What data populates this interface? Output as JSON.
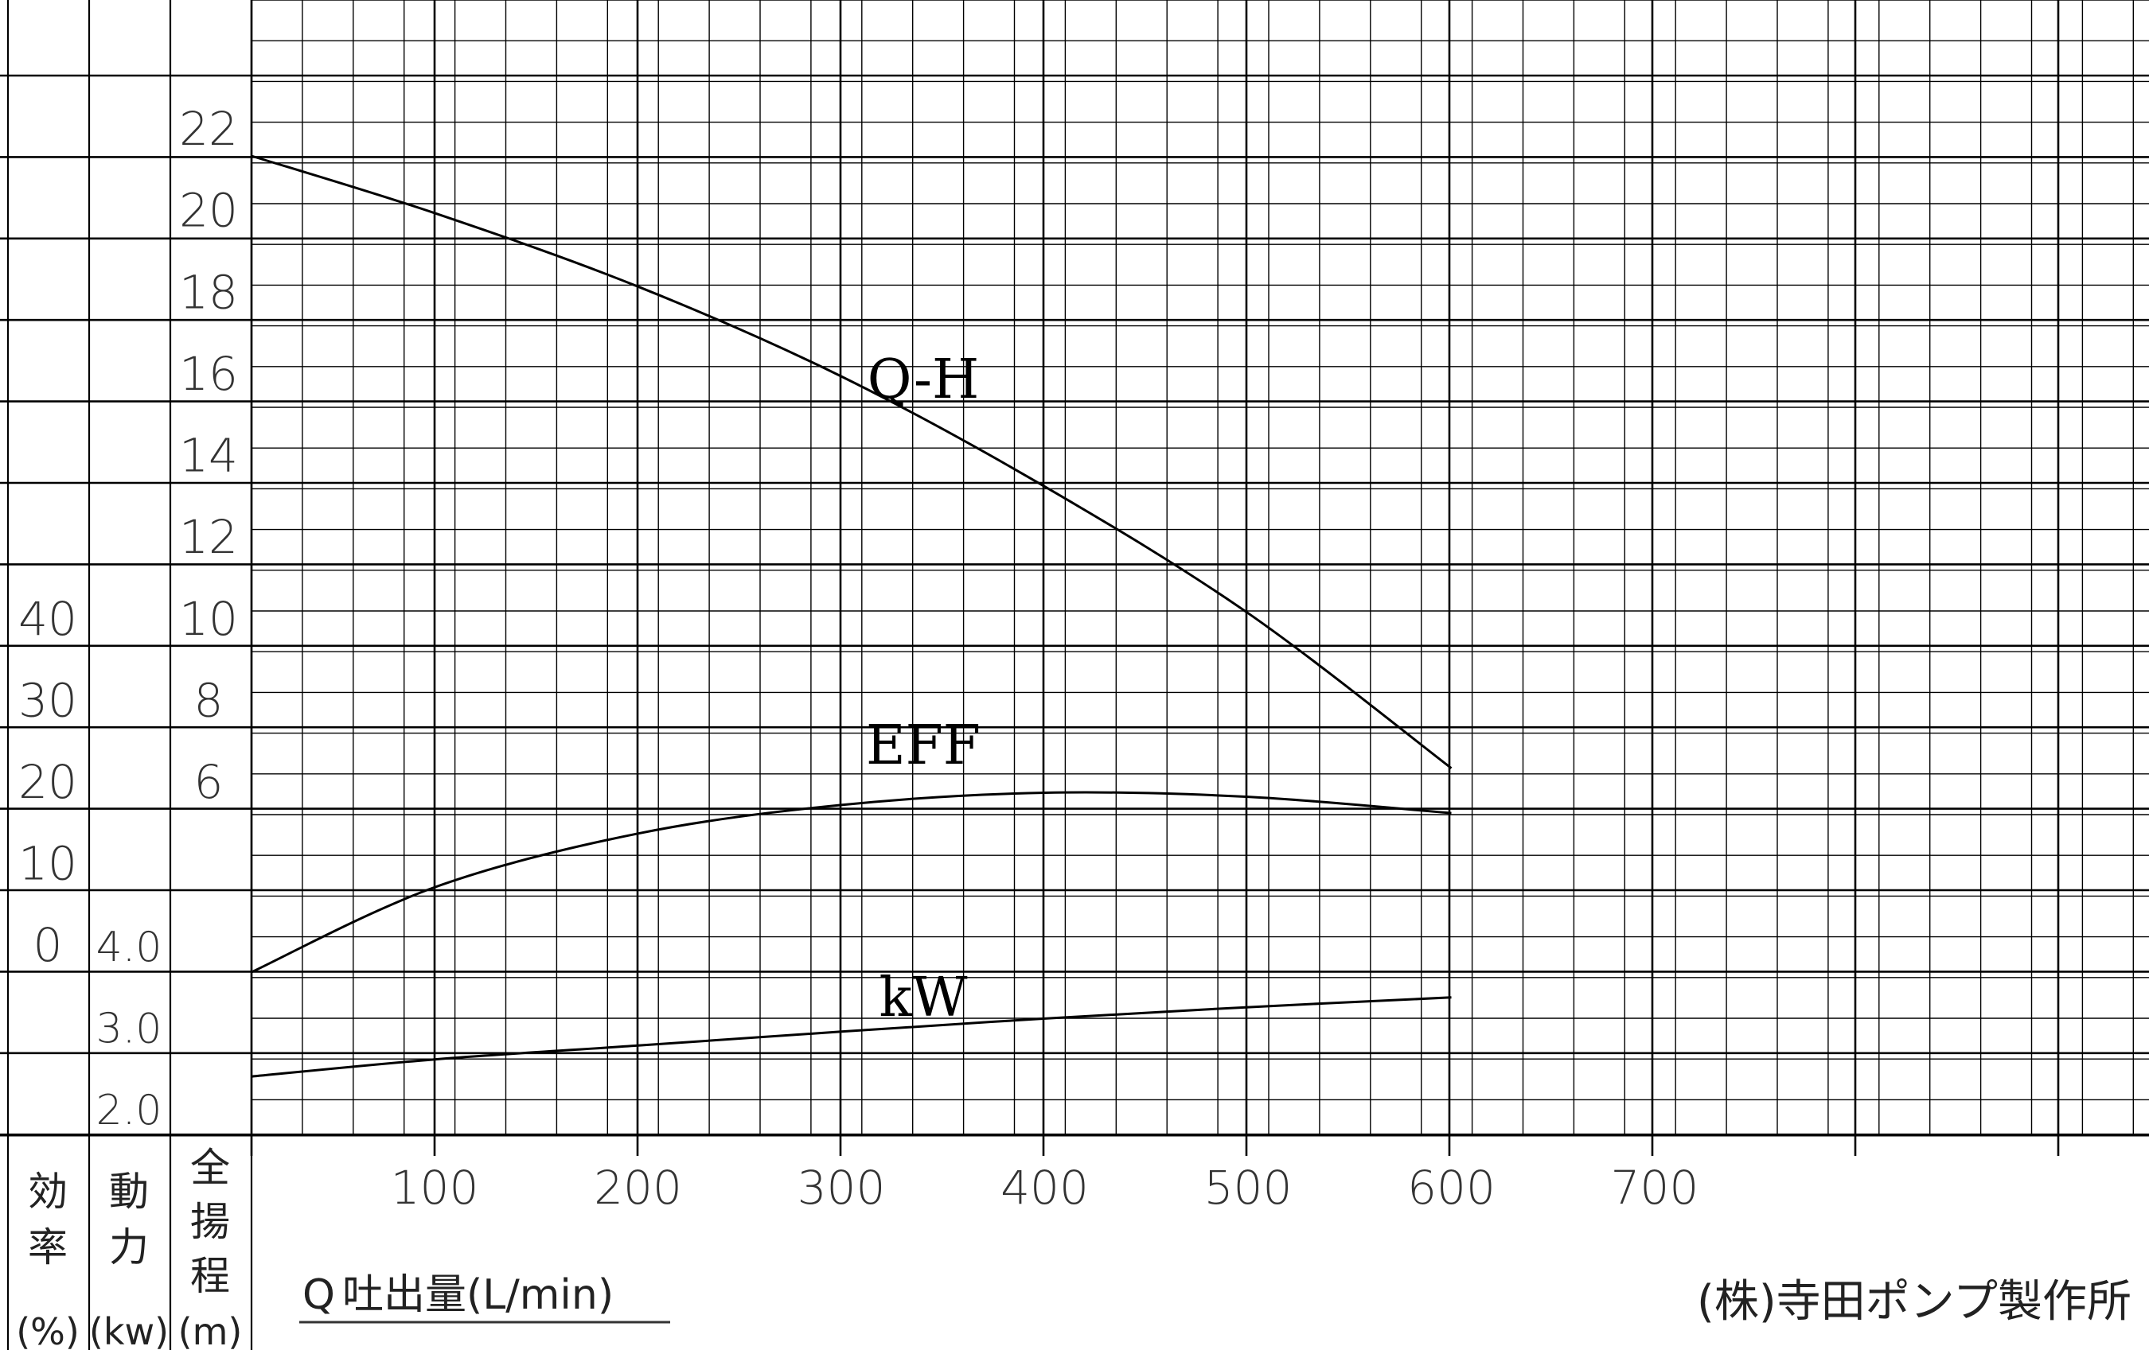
{
  "chart_data": {
    "type": "line",
    "x": {
      "ticks": [
        100,
        200,
        300,
        400,
        500,
        600,
        700
      ],
      "range": [
        10,
        920
      ],
      "label_prefix": "Q",
      "label": "吐出量(L/min)"
    },
    "axes": {
      "efficiency": {
        "header": [
          "効",
          "率"
        ],
        "unit": "(%)",
        "ticks": [
          0,
          10,
          20,
          30,
          40
        ],
        "labels": [
          "0",
          "10",
          "20",
          "30",
          "40"
        ]
      },
      "power": {
        "header": [
          "動",
          "力"
        ],
        "unit": "(kw)",
        "ticks": [
          2.0,
          3.0,
          4.0
        ],
        "labels": [
          "2.0",
          "3.0",
          "4.0"
        ]
      },
      "head": {
        "header": [
          "全",
          "揚",
          "程"
        ],
        "unit": "(m)",
        "ticks": [
          6,
          8,
          10,
          12,
          14,
          16,
          18,
          20,
          22
        ],
        "labels": [
          "6",
          "8",
          "10",
          "12",
          "14",
          "16",
          "18",
          "20",
          "22"
        ]
      }
    },
    "series": [
      {
        "name": "Q-H",
        "axis": "head",
        "points": [
          [
            10,
            22.0
          ],
          [
            100,
            20.6
          ],
          [
            200,
            18.8
          ],
          [
            300,
            16.6
          ],
          [
            400,
            13.9
          ],
          [
            500,
            10.8
          ],
          [
            600,
            7.0
          ]
        ]
      },
      {
        "name": "EFF",
        "axis": "efficiency",
        "points": [
          [
            10,
            0
          ],
          [
            100,
            10.4
          ],
          [
            200,
            17.0
          ],
          [
            300,
            20.5
          ],
          [
            400,
            22.0
          ],
          [
            500,
            21.5
          ],
          [
            600,
            19.5
          ]
        ]
      },
      {
        "name": "kW",
        "axis": "power",
        "points": [
          [
            10,
            2.72
          ],
          [
            100,
            2.93
          ],
          [
            200,
            3.1
          ],
          [
            300,
            3.27
          ],
          [
            400,
            3.43
          ],
          [
            500,
            3.57
          ],
          [
            600,
            3.69
          ]
        ]
      }
    ],
    "grid": true
  },
  "manufacturer": "(株)寺田ポンプ製作所"
}
